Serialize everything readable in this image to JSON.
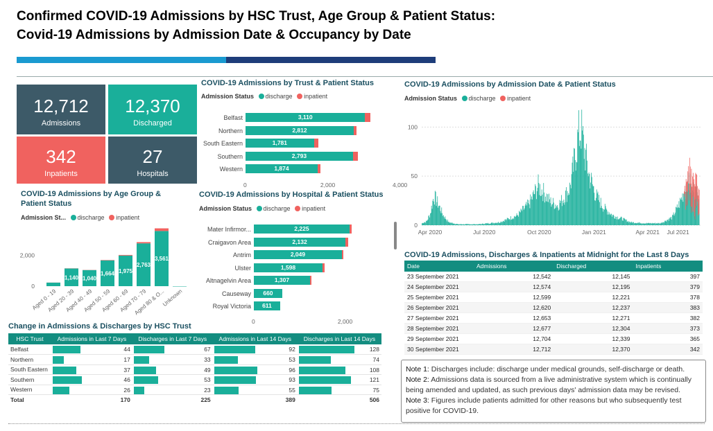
{
  "header": {
    "title_line1": "Confirmed COVID-19 Admissions by HSC Trust, Age Group & Patient Status:",
    "title_line2": "Covid-19 Admissions by Admission Date & Occupancy by Date"
  },
  "colors": {
    "discharge": "#1aaf9a",
    "inpatient": "#f0625f",
    "kpi_dark": "#3d5a68",
    "kpi_teal": "#1aaf9a",
    "kpi_red": "#f0625f",
    "accent1": "#1a9ad0",
    "accent2": "#1e3d7a"
  },
  "kpis": [
    {
      "value": "12,712",
      "label": "Admissions"
    },
    {
      "value": "12,370",
      "label": "Discharged"
    },
    {
      "value": "342",
      "label": "Inpatients"
    },
    {
      "value": "27",
      "label": "Hospitals"
    }
  ],
  "legend": {
    "title": "Admission Status",
    "title_short": "Admission St...",
    "discharge": "discharge",
    "inpatient": "inpatient"
  },
  "chart_data": [
    {
      "type": "bar",
      "orientation": "horizontal",
      "title": "COVID-19 Admissions by Trust & Patient Status",
      "categories": [
        "Belfast",
        "Northern",
        "South Eastern",
        "Southern",
        "Western"
      ],
      "series": [
        {
          "name": "discharge",
          "values": [
            3110,
            2812,
            1781,
            2793,
            1874
          ]
        },
        {
          "name": "inpatient",
          "values": [
            128,
            74,
            108,
            121,
            75
          ]
        }
      ],
      "xlim": [
        0,
        3300
      ],
      "ticks": [
        "0",
        "2,000"
      ],
      "tick_values": [
        0,
        2000
      ],
      "data_labels": [
        "3,110",
        "2,812",
        "1,781",
        "2,793",
        "1,874"
      ]
    },
    {
      "type": "bar",
      "title": "COVID-19 Admissions by Age Group & Patient Status",
      "categories": [
        "Aged 0 - 19",
        "Aged 20 - 39",
        "Aged 40 - 49",
        "Aged 50 - 59",
        "Aged 60 - 69",
        "Aged 70 - 79",
        "Aged 80 & O...",
        "Unknown"
      ],
      "series": [
        {
          "name": "discharge",
          "values": [
            230,
            1140,
            1040,
            1664,
            1975,
            2763,
            3561,
            0
          ]
        },
        {
          "name": "inpatient",
          "values": [
            5,
            10,
            10,
            25,
            40,
            80,
            170,
            0
          ]
        }
      ],
      "ylim": [
        0,
        3800
      ],
      "ticks": [
        "0",
        "2,000"
      ],
      "tick_values": [
        0,
        2000
      ],
      "data_labels": [
        "",
        "1,140",
        "1,040",
        "1,664",
        "1,975",
        "2,763",
        "3,561",
        ""
      ]
    },
    {
      "type": "bar",
      "orientation": "horizontal",
      "title": "COVID-19 Admissions by Hospital & Patient Status",
      "categories": [
        "Mater Infirmor...",
        "Craigavon Area",
        "Antrim",
        "Ulster",
        "Altnagelvin Area",
        "Causeway",
        "Royal Victoria"
      ],
      "series": [
        {
          "name": "discharge",
          "values": [
            2225,
            2132,
            2049,
            1598,
            1307,
            660,
            611
          ]
        },
        {
          "name": "inpatient",
          "values": [
            45,
            55,
            25,
            50,
            30,
            0,
            0
          ]
        }
      ],
      "xlim": [
        0,
        2550
      ],
      "ticks": [
        "0",
        "2,000"
      ],
      "tick_values": [
        0,
        2000
      ],
      "data_labels": [
        "2,225",
        "2,132",
        "2,049",
        "1,598",
        "1,307",
        "660",
        "611"
      ]
    },
    {
      "type": "bar",
      "title": "COVID-19 Admissions by Admission Date & Patient Status",
      "x_ticks": [
        "Apr 2020",
        "Jul 2020",
        "Oct 2020",
        "Jan 2021",
        "Apr 2021",
        "Jul 2021"
      ],
      "y_ticks": [
        "0",
        "50",
        "100"
      ],
      "y_tick_values": [
        0,
        50,
        100
      ],
      "left_axis_label": "4,000",
      "ylim": [
        0,
        120
      ],
      "daily_discharge_profile": [
        [
          0,
          2
        ],
        [
          8,
          4
        ],
        [
          14,
          12
        ],
        [
          20,
          30
        ],
        [
          27,
          22
        ],
        [
          36,
          10
        ],
        [
          45,
          3
        ],
        [
          60,
          1
        ],
        [
          95,
          1
        ],
        [
          130,
          3
        ],
        [
          160,
          10
        ],
        [
          180,
          22
        ],
        [
          195,
          40
        ],
        [
          205,
          33
        ],
        [
          215,
          24
        ],
        [
          228,
          20
        ],
        [
          238,
          28
        ],
        [
          248,
          38
        ],
        [
          255,
          62
        ],
        [
          262,
          90
        ],
        [
          267,
          98
        ],
        [
          272,
          78
        ],
        [
          280,
          52
        ],
        [
          292,
          30
        ],
        [
          305,
          18
        ],
        [
          320,
          10
        ],
        [
          338,
          6
        ],
        [
          350,
          3
        ],
        [
          375,
          2
        ],
        [
          400,
          2
        ],
        [
          420,
          8
        ],
        [
          432,
          22
        ],
        [
          442,
          38
        ],
        [
          450,
          48
        ],
        [
          457,
          38
        ],
        [
          465,
          25
        ]
      ],
      "daily_inpatient_profile": [
        [
          440,
          8
        ],
        [
          448,
          28
        ],
        [
          455,
          35
        ],
        [
          460,
          30
        ],
        [
          465,
          20
        ]
      ],
      "x_range_days": [
        0,
        470
      ]
    }
  ],
  "change_table": {
    "title": "Change in Admissions & Discharges by HSC Trust",
    "headers": [
      "HSC Trust",
      "Admissions in Last 7 Days",
      "Discharges in Last 7 Days",
      "Admissions in Last 14 Days",
      "Discharges in Last 14 Days"
    ],
    "rows": [
      {
        "name": "Belfast",
        "a7": 44,
        "d7": 67,
        "a14": 92,
        "d14": 128
      },
      {
        "name": "Northern",
        "a7": 17,
        "d7": 33,
        "a14": 53,
        "d14": 74
      },
      {
        "name": "South Eastern",
        "a7": 37,
        "d7": 49,
        "a14": 96,
        "d14": 108
      },
      {
        "name": "Southern",
        "a7": 46,
        "d7": 53,
        "a14": 93,
        "d14": 121
      },
      {
        "name": "Western",
        "a7": 26,
        "d7": 23,
        "a14": 55,
        "d14": 75
      }
    ],
    "total": {
      "name": "Total",
      "a7": 170,
      "d7": 225,
      "a14": 389,
      "d14": 506
    }
  },
  "daily_table": {
    "title": "COVID-19 Admissions, Discharges & Inpatients at Midnight for the Last 8 Days",
    "headers": [
      "Date",
      "Admissions",
      "Discharged",
      "Inpatients"
    ],
    "rows": [
      [
        "23 September 2021",
        "12,542",
        "12,145",
        "397"
      ],
      [
        "24 September 2021",
        "12,574",
        "12,195",
        "379"
      ],
      [
        "25 September 2021",
        "12,599",
        "12,221",
        "378"
      ],
      [
        "26 September 2021",
        "12,620",
        "12,237",
        "383"
      ],
      [
        "27 September 2021",
        "12,653",
        "12,271",
        "382"
      ],
      [
        "28 September 2021",
        "12,677",
        "12,304",
        "373"
      ],
      [
        "29 September 2021",
        "12,704",
        "12,339",
        "365"
      ],
      [
        "30 September 2021",
        "12,712",
        "12,370",
        "342"
      ]
    ]
  },
  "notes": [
    {
      "label": "Note 1:",
      "text": " Discharges include: discharge under medical grounds, self-discharge or death."
    },
    {
      "label": "Note 2:",
      "text": " Admissions data is sourced from a live administrative system which is continually being amended and updated, as such previous days' admission data may be revised."
    },
    {
      "label": "Note 3:",
      "text": " Figures include patients admitted for other reasons but who subsequently test positive for COVID-19."
    }
  ]
}
